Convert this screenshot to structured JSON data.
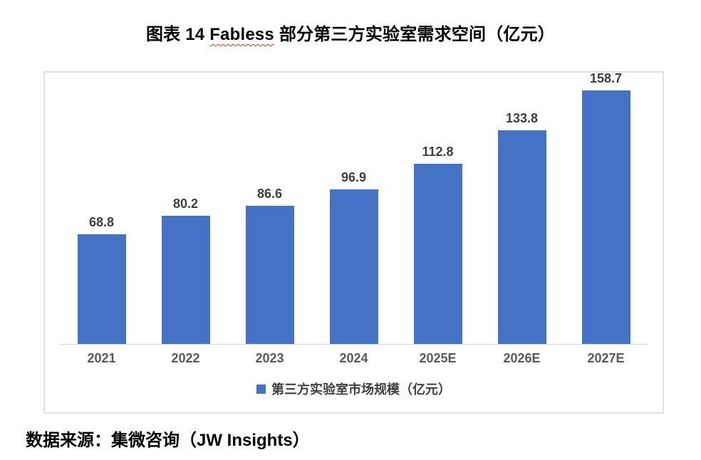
{
  "title": {
    "prefix": "图表 14 ",
    "misspelled_word": "Fabless",
    "suffix": " 部分第三方实验室需求空间（亿元）"
  },
  "chart_data": {
    "type": "bar",
    "title": "图表 14 Fabless 部分第三方实验室需求空间（亿元）",
    "categories": [
      "2021",
      "2022",
      "2023",
      "2024",
      "2025E",
      "2026E",
      "2027E"
    ],
    "values": [
      68.8,
      80.2,
      86.6,
      96.9,
      112.8,
      133.8,
      158.7
    ],
    "series_name": "第三方实验室市场规模（亿元）",
    "unit": "亿元",
    "bar_color": "#4472C4",
    "value_label_color": "#3f3f3f",
    "axis_label_color": "#595959",
    "ylim": [
      0,
      170
    ],
    "grid": false,
    "y_axis_visible": false,
    "legend_position": "bottom"
  },
  "legend": {
    "label": "第三方实验室市场规模（亿元）",
    "swatch_color": "#4472C4"
  },
  "source": {
    "text": "数据来源：集微咨询（JW Insights）"
  }
}
